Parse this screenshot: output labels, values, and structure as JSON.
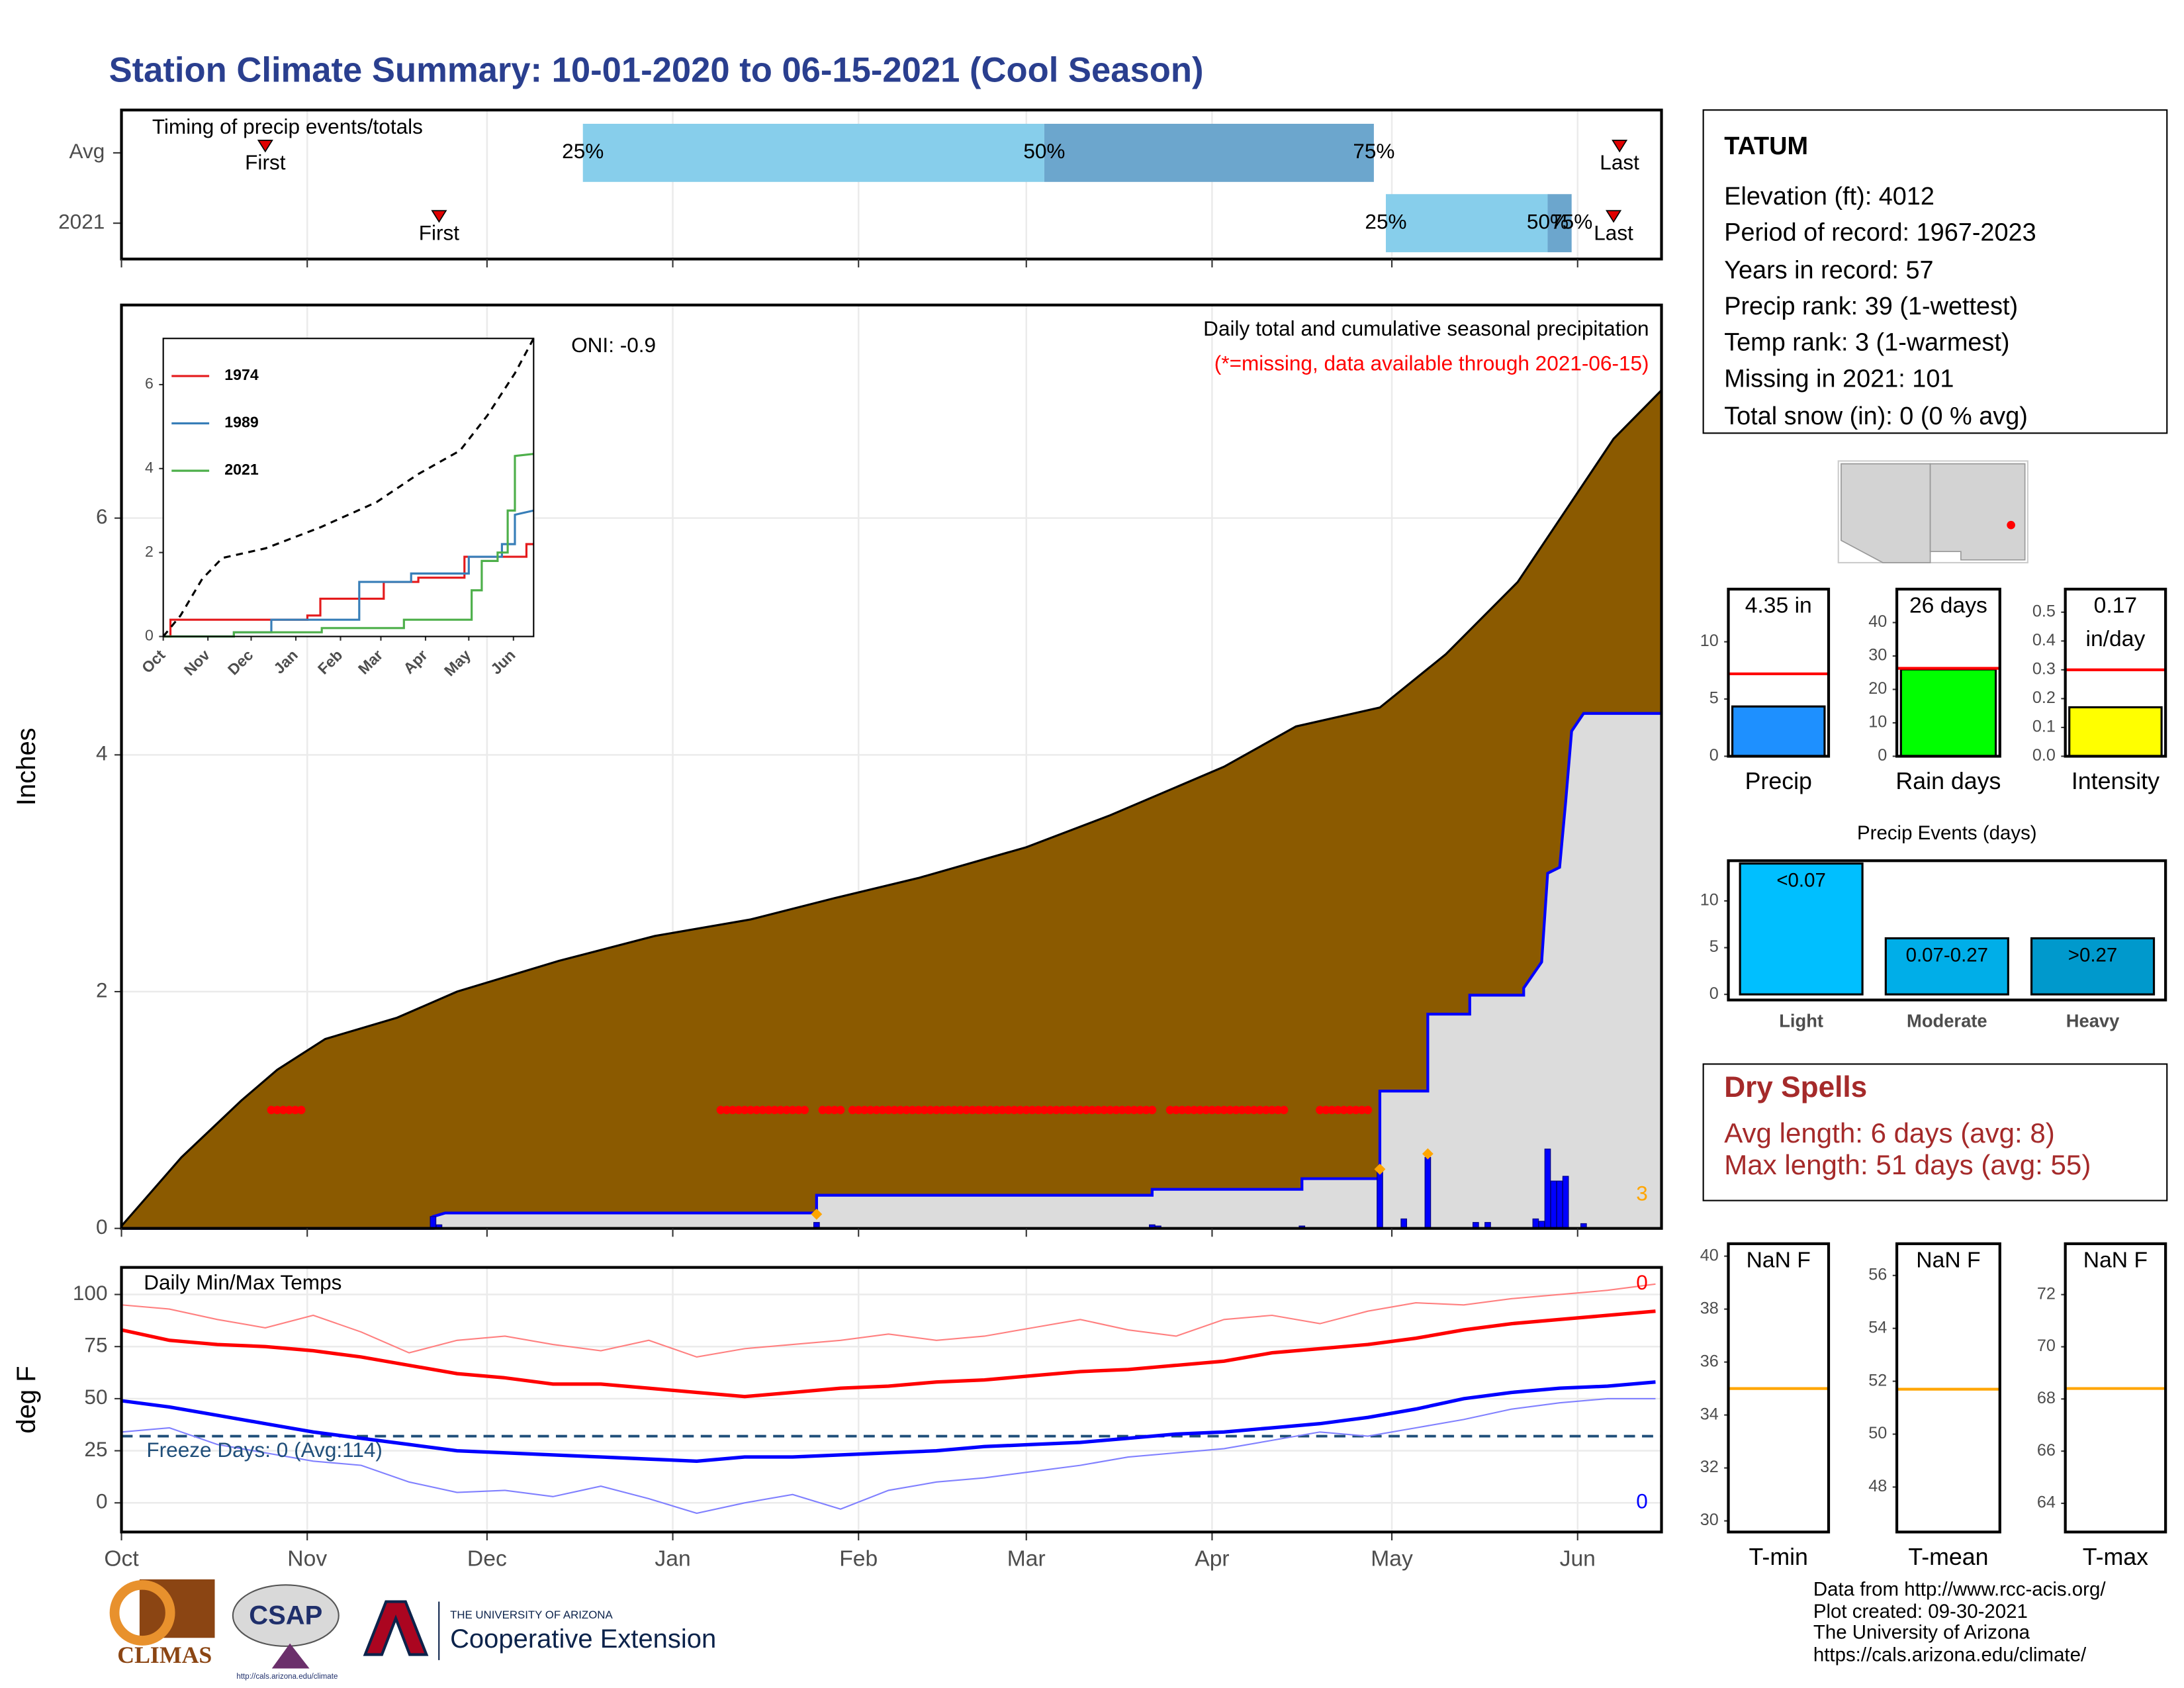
{
  "title": "Station Climate Summary: 10-01-2020 to 06-15-2021 (Cool Season)",
  "station": {
    "name": "TATUM",
    "lines": [
      "Elevation (ft): 4012",
      "Period of record: 1967-2023",
      "Years in record: 57",
      "Precip rank: 39 (1-wettest)",
      "Temp rank: 3 (1-warmest)",
      "Missing in 2021: 101",
      "Total snow (in): 0 (0 % avg)"
    ]
  },
  "dry_spells": {
    "title": "Dry Spells",
    "lines": [
      "Avg length: 6 days (avg: 8)",
      "Max length: 51 days (avg: 55)"
    ]
  },
  "footer": [
    "Data from http://www.rcc-acis.org/",
    "Plot created: 09-30-2021",
    "The University of Arizona",
    "https://cals.arizona.edu/climate/"
  ],
  "logos": {
    "climas": "CLIMAS",
    "csap": "CSAP",
    "csap_url": "http://cals.arizona.edu/climate",
    "university": "THE UNIVERSITY OF ARIZONA",
    "extension": "Cooperative Extension"
  },
  "chart_data": [
    {
      "type": "timeline",
      "title": "Timing of precip events/totals",
      "categories": [
        "Avg",
        "2021"
      ],
      "first": [
        24,
        53
      ],
      "last": [
        250,
        249
      ],
      "q25": [
        77,
        211
      ],
      "q50": [
        154,
        238
      ],
      "q75": [
        209,
        242
      ],
      "first_label": "First",
      "last_label": "Last",
      "quantile_labels": [
        "25%",
        "50%",
        "75%"
      ],
      "colors": [
        "#87ceeb",
        "#6ca6cd"
      ],
      "marker_color": "#e00000",
      "xlim": [
        0,
        257
      ],
      "xticks": [
        0,
        31,
        61,
        92,
        123,
        151,
        182,
        212,
        243
      ],
      "grid": true
    },
    {
      "type": "area",
      "title": "Daily total and cumulative seasonal precipitation",
      "subtitle": "(*=missing, data available through 2021-06-15)",
      "annotation": "ONI: -0.9",
      "ylabel": "Inches",
      "xlim": [
        0,
        257
      ],
      "xticks": [
        0,
        31,
        61,
        92,
        123,
        151,
        182,
        212,
        243
      ],
      "ylim": [
        0,
        7.8
      ],
      "yticks": [
        0,
        2,
        4,
        6
      ],
      "grid": true,
      "series": [
        {
          "color": "#8b5a00",
          "line_color": "#000000",
          "x": [
            0,
            10,
            20,
            26,
            34,
            46,
            56,
            73,
            89,
            105,
            119,
            133,
            151,
            165,
            184,
            196,
            210,
            221,
            233,
            242,
            249,
            257
          ],
          "values": [
            0.02,
            0.6,
            1.08,
            1.34,
            1.6,
            1.78,
            2.0,
            2.26,
            2.47,
            2.61,
            2.79,
            2.96,
            3.22,
            3.49,
            3.9,
            4.24,
            4.4,
            4.85,
            5.46,
            6.14,
            6.67,
            7.08
          ]
        },
        {
          "color": "#dcdcdc",
          "line_color": "#0000ff",
          "x": [
            0,
            52,
            52,
            54,
            116,
            116,
            172,
            172,
            197,
            197,
            210,
            210,
            218,
            218,
            225,
            225,
            234,
            234,
            237,
            238,
            240,
            241,
            242,
            244,
            257
          ],
          "values": [
            0,
            0,
            0.1,
            0.13,
            0.13,
            0.28,
            0.28,
            0.33,
            0.33,
            0.42,
            0.42,
            1.16,
            1.16,
            1.81,
            1.81,
            1.97,
            1.97,
            2.03,
            2.25,
            3.0,
            3.05,
            3.6,
            4.2,
            4.35,
            4.35
          ]
        }
      ],
      "bars": {
        "color": "#0000ff",
        "x": [
          52,
          53,
          116,
          172,
          173,
          197,
          210,
          214,
          218,
          226,
          228,
          236,
          237,
          238,
          239,
          240,
          241,
          244
        ],
        "values": [
          0.1,
          0.03,
          0.05,
          0.03,
          0.02,
          0.02,
          0.5,
          0.08,
          0.6,
          0.05,
          0.05,
          0.08,
          0.06,
          0.67,
          0.4,
          0.4,
          0.44,
          0.04
        ]
      },
      "flags": {
        "color": "#ffa500",
        "x": [
          116,
          210,
          218
        ],
        "values": [
          0.12,
          0.5,
          0.63
        ]
      },
      "flag_count": 3,
      "missing": {
        "color": "#ff0000",
        "y": 1,
        "ranges": [
          [
            25,
            30
          ],
          [
            100,
            114
          ],
          [
            117,
            120
          ],
          [
            122,
            172
          ],
          [
            175,
            194
          ],
          [
            200,
            208
          ]
        ]
      }
    },
    {
      "type": "line",
      "xlim": [
        0,
        257
      ],
      "ylim": [
        0,
        7.1
      ],
      "yticks": [
        0,
        2,
        4,
        6
      ],
      "xticks": [
        {
          "value": 0,
          "label": "Oct"
        },
        {
          "value": 31,
          "label": "Nov"
        },
        {
          "value": 61,
          "label": "Dec"
        },
        {
          "value": 92,
          "label": "Jan"
        },
        {
          "value": 123,
          "label": "Feb"
        },
        {
          "value": 151,
          "label": "Mar"
        },
        {
          "value": 182,
          "label": "Apr"
        },
        {
          "value": 212,
          "label": "May"
        },
        {
          "value": 243,
          "label": "Jun"
        }
      ],
      "series": [
        {
          "name": "1974",
          "color": "#e41a1c",
          "x": [
            0,
            5,
            5,
            100,
            100,
            109,
            109,
            153,
            153,
            177,
            177,
            209,
            209,
            252,
            252,
            257
          ],
          "values": [
            0,
            0,
            0.4,
            0.4,
            0.5,
            0.5,
            0.9,
            0.9,
            1.3,
            1.3,
            1.4,
            1.4,
            1.9,
            1.9,
            2.2,
            2.2
          ]
        },
        {
          "name": "1989",
          "color": "#377eb8",
          "x": [
            0,
            49,
            49,
            75,
            75,
            136,
            136,
            172,
            172,
            212,
            212,
            235,
            235,
            244,
            244,
            257
          ],
          "values": [
            0,
            0,
            0.1,
            0.1,
            0.4,
            0.4,
            1.3,
            1.3,
            1.5,
            1.5,
            1.9,
            1.9,
            2.2,
            2.2,
            2.9,
            3.0
          ]
        },
        {
          "name": "2021",
          "color": "#4daf4a",
          "x": [
            0,
            49,
            49,
            110,
            110,
            167,
            167,
            214,
            214,
            221,
            221,
            232,
            232,
            239,
            239,
            244,
            244,
            257
          ],
          "values": [
            0,
            0,
            0.1,
            0.1,
            0.2,
            0.2,
            0.4,
            0.4,
            1.1,
            1.1,
            1.8,
            1.8,
            2.0,
            2.0,
            3.0,
            3.0,
            4.3,
            4.35
          ]
        },
        {
          "color": "#000000",
          "dash": true,
          "x": [
            0,
            12,
            27,
            41,
            71,
            109,
            148,
            177,
            206,
            225,
            244,
            257
          ],
          "values": [
            0,
            0.5,
            1.37,
            1.87,
            2.1,
            2.6,
            3.2,
            3.87,
            4.43,
            5.27,
            6.27,
            7.1
          ]
        }
      ]
    },
    {
      "type": "line",
      "title": "Daily Min/Max Temps",
      "ylabel": "deg F",
      "annotation": "Freeze Days: 0 (Avg:114)",
      "count_high": 0,
      "count_high_color": "#ff0000",
      "count_low": 0,
      "count_low_color": "#0000ff",
      "xlim": [
        0,
        257
      ],
      "ylim": [
        -14,
        113
      ],
      "yticks": [
        0,
        25,
        50,
        75,
        100
      ],
      "grid": true,
      "xticks": [
        {
          "value": 0,
          "label": "Oct"
        },
        {
          "value": 31,
          "label": "Nov"
        },
        {
          "value": 61,
          "label": "Dec"
        },
        {
          "value": 92,
          "label": "Jan"
        },
        {
          "value": 123,
          "label": "Feb"
        },
        {
          "value": 151,
          "label": "Mar"
        },
        {
          "value": 182,
          "label": "Apr"
        },
        {
          "value": 212,
          "label": "May"
        },
        {
          "value": 243,
          "label": "Jun"
        }
      ],
      "hline": {
        "value": 32,
        "color": "#1f4e79"
      },
      "x": [
        0,
        8,
        16,
        24,
        32,
        40,
        48,
        56,
        64,
        72,
        80,
        88,
        96,
        104,
        112,
        120,
        128,
        136,
        144,
        152,
        160,
        168,
        176,
        184,
        192,
        200,
        208,
        216,
        224,
        232,
        240,
        248,
        256
      ],
      "series": [
        {
          "color": "#ff8080",
          "width": 1,
          "values": [
            95,
            93,
            88,
            84,
            90,
            82,
            72,
            78,
            80,
            76,
            73,
            78,
            70,
            74,
            76,
            78,
            81,
            78,
            80,
            84,
            88,
            83,
            80,
            88,
            90,
            86,
            92,
            96,
            95,
            98,
            100,
            102,
            105
          ]
        },
        {
          "color": "#8080ff",
          "width": 1,
          "values": [
            34,
            36,
            28,
            24,
            20,
            18,
            10,
            5,
            6,
            3,
            8,
            2,
            -5,
            0,
            4,
            -3,
            6,
            10,
            12,
            15,
            18,
            22,
            24,
            26,
            30,
            34,
            32,
            36,
            40,
            45,
            48,
            50,
            50
          ]
        },
        {
          "color": "#ff0000",
          "width": 2.5,
          "values": [
            83,
            78,
            76,
            75,
            73,
            70,
            66,
            62,
            60,
            57,
            57,
            55,
            53,
            51,
            53,
            55,
            56,
            58,
            59,
            61,
            63,
            64,
            66,
            68,
            72,
            74,
            76,
            79,
            83,
            86,
            88,
            90,
            92
          ]
        },
        {
          "color": "#0000ff",
          "width": 2.5,
          "values": [
            49,
            46,
            42,
            38,
            34,
            31,
            28,
            25,
            24,
            23,
            22,
            21,
            20,
            22,
            22,
            23,
            24,
            25,
            27,
            28,
            29,
            31,
            33,
            34,
            36,
            38,
            41,
            45,
            50,
            53,
            55,
            56,
            58
          ]
        }
      ]
    },
    {
      "type": "bar",
      "categories": [
        "Precip"
      ],
      "values": [
        4.35
      ],
      "value_labels": [
        "4.35 in"
      ],
      "color": "#1e90ff",
      "reference": 7.2,
      "reference_color": "#ff0000",
      "ylim": [
        0,
        14.6
      ],
      "yticks": [
        0,
        5,
        10
      ]
    },
    {
      "type": "bar",
      "categories": [
        "Rain days"
      ],
      "values": [
        26
      ],
      "value_labels": [
        "26 days"
      ],
      "color": "#00ff00",
      "reference": 26.3,
      "reference_color": "#ff0000",
      "ylim": [
        0,
        50
      ],
      "yticks": [
        0,
        10,
        20,
        30,
        40
      ]
    },
    {
      "type": "bar",
      "categories": [
        "Intensity"
      ],
      "values": [
        0.17
      ],
      "value_labels": [
        "0.17 in/day"
      ],
      "color": "#ffff00",
      "reference": 0.3,
      "reference_color": "#ff0000",
      "ylim": [
        0,
        0.58
      ],
      "yticks": [
        {
          "value": 0,
          "label": "0.0"
        },
        0.1,
        0.2,
        0.3,
        0.4,
        0.5
      ]
    },
    {
      "type": "bar",
      "title": "Precip Events (days)",
      "categories": [
        "Light",
        "Moderate",
        "Heavy"
      ],
      "values": [
        14,
        6,
        6
      ],
      "bar_labels": [
        "<0.07",
        "0.07-0.27",
        ">0.27"
      ],
      "colors": [
        "#00bfff",
        "#00aee8",
        "#0099cc"
      ],
      "ylim": [
        -0.6,
        14.3
      ],
      "yticks": [
        0,
        5,
        10
      ]
    },
    {
      "type": "bar",
      "categories": [
        "T-min"
      ],
      "values": [
        null
      ],
      "value_labels": [
        "NaN F"
      ],
      "reference": 35,
      "reference_color": "#ffa500",
      "ylim": [
        29.58,
        40.47
      ],
      "yticks": [
        30,
        32,
        34,
        36,
        38,
        40
      ]
    },
    {
      "type": "bar",
      "categories": [
        "T-mean"
      ],
      "values": [
        null
      ],
      "value_labels": [
        "NaN F"
      ],
      "reference": 51.7,
      "reference_color": "#ffa500",
      "ylim": [
        46.3,
        57.2
      ],
      "yticks": [
        48,
        50,
        52,
        54,
        56
      ]
    },
    {
      "type": "bar",
      "categories": [
        "T-max"
      ],
      "values": [
        null
      ],
      "value_labels": [
        "NaN F"
      ],
      "reference": 68.4,
      "reference_color": "#ffa500",
      "ylim": [
        62.9,
        73.95
      ],
      "yticks": [
        64,
        66,
        68,
        70,
        72
      ]
    }
  ]
}
